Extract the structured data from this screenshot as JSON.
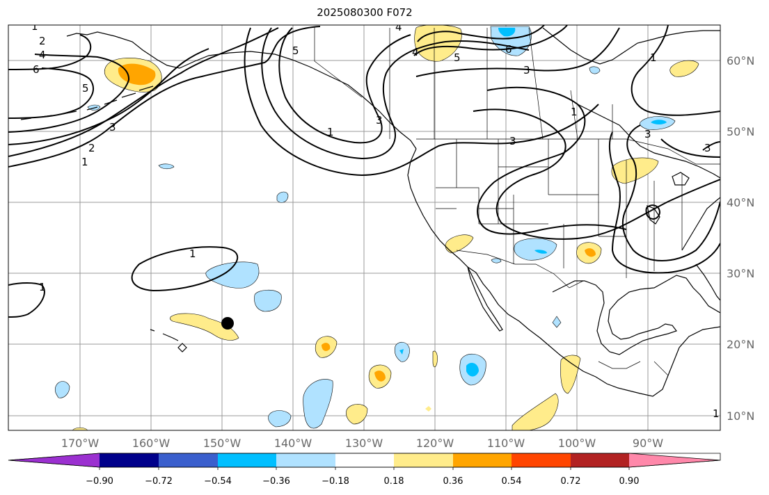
{
  "title": "2025080300 F072",
  "map": {
    "lon_labels": [
      "170°W",
      "160°W",
      "150°W",
      "140°W",
      "130°W",
      "120°W",
      "110°W",
      "100°W",
      "90°W"
    ],
    "lat_labels": [
      "60°N",
      "50°N",
      "40°N",
      "30°N",
      "20°N",
      "10°N"
    ],
    "contour_labels": [
      "1",
      "2",
      "4",
      "6",
      "5",
      "3",
      "2",
      "1",
      "1",
      "6",
      "5",
      "4",
      "5",
      "3",
      "1",
      "3",
      "3",
      "1",
      "1",
      "4",
      "3",
      "3",
      "1",
      "1"
    ],
    "marker": "black-dot"
  },
  "colorbar": {
    "colors": [
      "#9b30d0",
      "#00008b",
      "#3a5fcd",
      "#00bfff",
      "#b0e2ff",
      "#ffffff",
      "#ffec8b",
      "#ffa500",
      "#ff4500",
      "#b22222",
      "#ff88aa"
    ],
    "tick_labels": [
      "−0.90",
      "−0.72",
      "−0.54",
      "−0.36",
      "−0.18",
      "0.18",
      "0.36",
      "0.54",
      "0.72",
      "0.90"
    ]
  },
  "colors": {
    "neg_light": "#b0e2ff",
    "neg_mid": "#00bfff",
    "pos_light": "#ffec8b",
    "pos_mid": "#ffa500"
  }
}
